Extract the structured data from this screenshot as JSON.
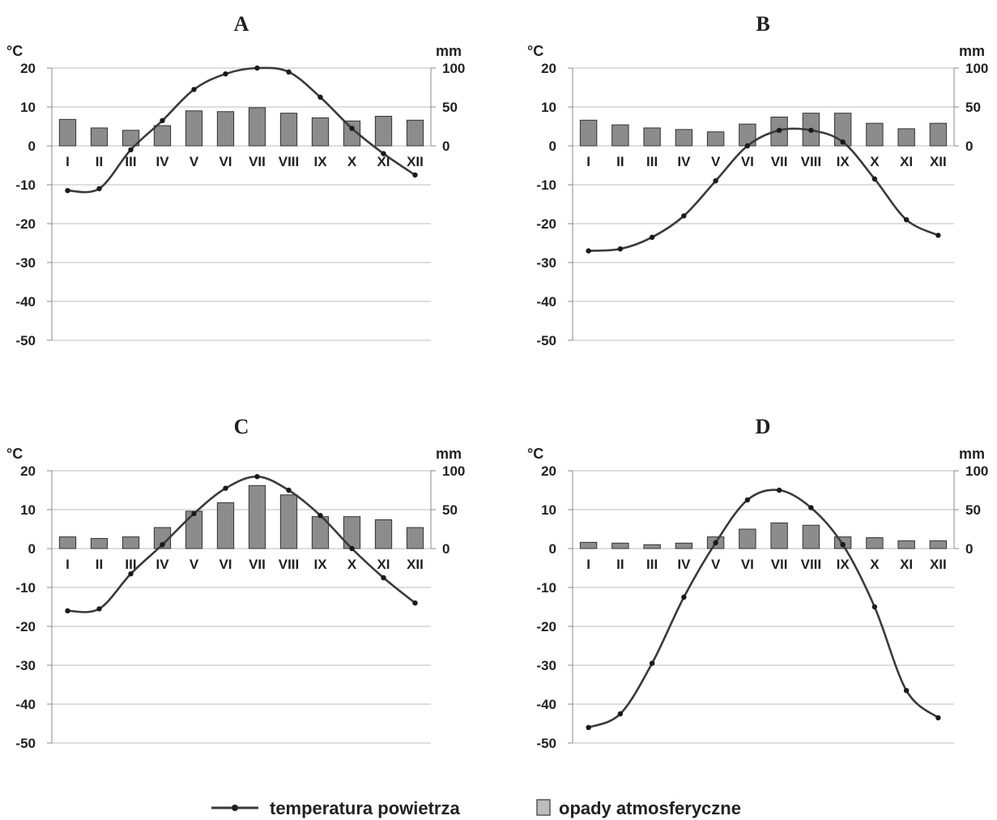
{
  "colors": {
    "bar_fill": "#8c8c8c",
    "bar_stroke": "#333333",
    "line": "#3a3a3a",
    "grid": "#bdbdbd",
    "axis": "#888888",
    "text": "#222222"
  },
  "legend": {
    "temperature_label": "temperatura powietrza",
    "precipitation_label": "opady atmosferyczne",
    "position": "bottom-center"
  },
  "chart_data": [
    {
      "type": "bar+line",
      "title": "A",
      "left_axis_label": "°C",
      "right_axis_label": "mm",
      "temp_range": [
        -50,
        20
      ],
      "precip_range": [
        0,
        100
      ],
      "temp_ticks": [
        "20",
        "10",
        "0",
        "-10",
        "-20",
        "-30",
        "-40",
        "-50"
      ],
      "precip_ticks": [
        "100",
        "50",
        "0"
      ],
      "categories": [
        "I",
        "II",
        "III",
        "IV",
        "V",
        "VI",
        "VII",
        "VIII",
        "IX",
        "X",
        "XI",
        "XII"
      ],
      "temperature": [
        -11.5,
        -11,
        -1,
        6.5,
        14.5,
        18.5,
        20,
        19,
        12.5,
        4.5,
        -2,
        -7.5
      ],
      "precipitation": [
        34,
        23,
        20,
        26,
        45,
        44,
        49,
        42,
        36,
        32,
        38,
        33
      ]
    },
    {
      "type": "bar+line",
      "title": "B",
      "left_axis_label": "°C",
      "right_axis_label": "mm",
      "temp_range": [
        -50,
        20
      ],
      "precip_range": [
        0,
        100
      ],
      "temp_ticks": [
        "20",
        "10",
        "0",
        "-10",
        "-20",
        "-30",
        "-40",
        "-50"
      ],
      "precip_ticks": [
        "100",
        "50",
        "0"
      ],
      "categories": [
        "I",
        "II",
        "III",
        "IV",
        "V",
        "VI",
        "VII",
        "VIII",
        "IX",
        "X",
        "XI",
        "XII"
      ],
      "temperature": [
        -27,
        -26.5,
        -23.5,
        -18,
        -9,
        0,
        4,
        4,
        1,
        -8.5,
        -19,
        -23
      ],
      "precipitation": [
        33,
        27,
        23,
        21,
        18,
        28,
        37,
        42,
        42,
        29,
        22,
        29
      ]
    },
    {
      "type": "bar+line",
      "title": "C",
      "left_axis_label": "°C",
      "right_axis_label": "mm",
      "temp_range": [
        -50,
        20
      ],
      "precip_range": [
        0,
        100
      ],
      "temp_ticks": [
        "20",
        "10",
        "0",
        "-10",
        "-20",
        "-30",
        "-40",
        "-50"
      ],
      "precip_ticks": [
        "100",
        "50",
        "0"
      ],
      "categories": [
        "I",
        "II",
        "III",
        "IV",
        "V",
        "VI",
        "VII",
        "VIII",
        "IX",
        "X",
        "XI",
        "XII"
      ],
      "temperature": [
        -16,
        -15.5,
        -6.5,
        1,
        9,
        15.5,
        18.5,
        15,
        8.5,
        0,
        -7.5,
        -14
      ],
      "precipitation": [
        15,
        13,
        15,
        27,
        48,
        59,
        81,
        69,
        41,
        41,
        37,
        27
      ]
    },
    {
      "type": "bar+line",
      "title": "D",
      "left_axis_label": "°C",
      "right_axis_label": "mm",
      "temp_range": [
        -50,
        20
      ],
      "precip_range": [
        0,
        100
      ],
      "temp_ticks": [
        "20",
        "10",
        "0",
        "-10",
        "-20",
        "-30",
        "-40",
        "-50"
      ],
      "precip_ticks": [
        "100",
        "50",
        "0"
      ],
      "categories": [
        "I",
        "II",
        "III",
        "IV",
        "V",
        "VI",
        "VII",
        "VIII",
        "IX",
        "X",
        "XI",
        "XII"
      ],
      "temperature": [
        -46,
        -42.5,
        -29.5,
        -12.5,
        1.5,
        12.5,
        15,
        10.5,
        1,
        -15,
        -36.5,
        -43.5
      ],
      "precipitation": [
        8,
        7,
        5,
        7,
        15,
        25,
        33,
        30,
        15,
        14,
        10,
        10
      ]
    }
  ]
}
